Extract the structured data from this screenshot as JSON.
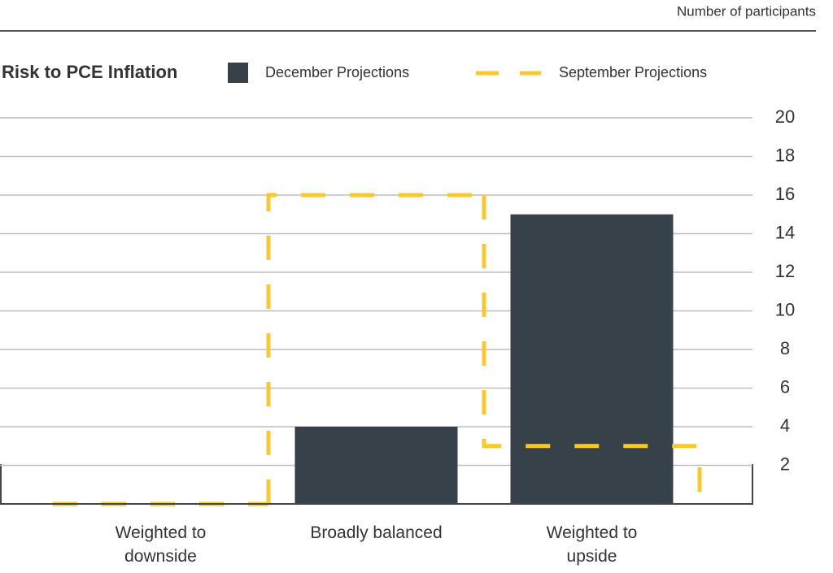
{
  "chart_data": {
    "type": "bar",
    "title": "Risk to PCE Inflation",
    "y_axis_label": "Number of participants",
    "categories": [
      "Weighted to downside",
      "Broadly balanced",
      "Weighted to upside"
    ],
    "series": [
      {
        "name": "December Projections",
        "color": "#36414a",
        "style": "bar",
        "values": [
          0,
          4,
          15
        ]
      },
      {
        "name": "September Projections",
        "color": "#fcc72c",
        "style": "dashed-step",
        "values": [
          0,
          16,
          3
        ]
      }
    ],
    "ylim": [
      0,
      20
    ],
    "yticks": [
      2,
      4,
      6,
      8,
      10,
      12,
      14,
      16,
      18,
      20
    ],
    "grid": true
  }
}
